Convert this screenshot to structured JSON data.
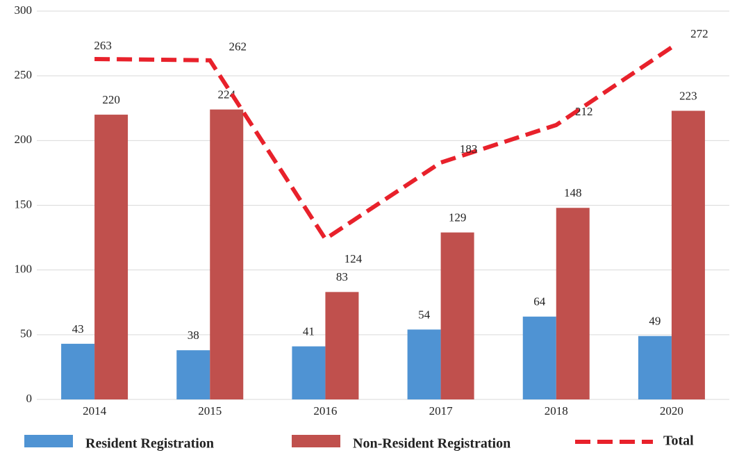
{
  "chart_data": {
    "type": "bar",
    "categories": [
      "2014",
      "2015",
      "2016",
      "2017",
      "2018",
      "2020"
    ],
    "series": [
      {
        "name": "Resident Registration",
        "color": "#4f93d3",
        "values": [
          43,
          38,
          41,
          54,
          64,
          49
        ]
      },
      {
        "name": "Non-Resident Registration",
        "color": "#c0504d",
        "values": [
          220,
          224,
          83,
          129,
          148,
          223
        ]
      },
      {
        "name": "Total",
        "color": "#e8212b",
        "type": "line",
        "values": [
          263,
          262,
          124,
          183,
          212,
          272
        ]
      }
    ],
    "ylim": [
      0,
      300
    ],
    "yticks": [
      0,
      50,
      100,
      150,
      200,
      250,
      300
    ],
    "grid": true,
    "legend": "bottom"
  }
}
